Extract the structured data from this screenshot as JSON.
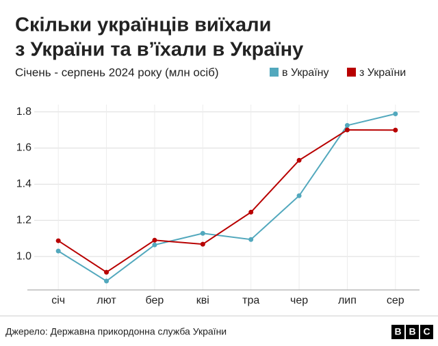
{
  "chart_data": {
    "type": "line",
    "title": [
      "Скільки українців виїхали",
      "з України та в’їхали в Україну"
    ],
    "subtitle": "Січень - серпень 2024 року (млн осіб)",
    "categories": [
      "січ",
      "лют",
      "бер",
      "кві",
      "тра",
      "чер",
      "лип",
      "сер"
    ],
    "series": [
      {
        "name": "в Україну",
        "color": "#52a8bd",
        "values": [
          1.03,
          0.864,
          1.064,
          1.128,
          1.094,
          1.336,
          1.725,
          1.789
        ]
      },
      {
        "name": "з України",
        "color": "#b80000",
        "values": [
          1.087,
          0.913,
          1.09,
          1.068,
          1.245,
          1.532,
          1.7,
          1.699
        ]
      }
    ],
    "ylim": [
      0.815,
      1.84
    ],
    "yticks": [
      {
        "value": 1,
        "label": "1.0"
      },
      1.2,
      1.4,
      1.6,
      1.8
    ],
    "grid": true,
    "legend": "top-right",
    "source": "Джерело: Державна прикордонна служба України",
    "logo": [
      "B",
      "B",
      "C"
    ]
  }
}
